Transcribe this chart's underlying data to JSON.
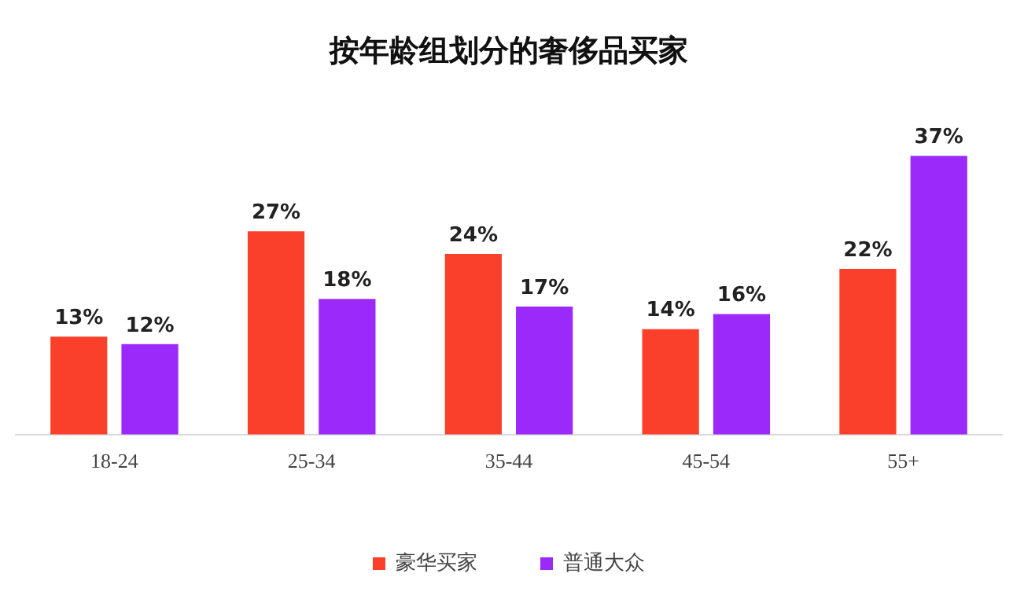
{
  "chart_data": {
    "type": "bar",
    "title": "按年龄组划分的奢侈品买家",
    "categories": [
      "18-24",
      "25-34",
      "35-44",
      "45-54",
      "55+"
    ],
    "series": [
      {
        "name": "豪华买家",
        "color": "#fa3f2a",
        "values": [
          13,
          27,
          24,
          14,
          22
        ],
        "value_labels": [
          "13%",
          "27%",
          "24%",
          "14%",
          "22%"
        ]
      },
      {
        "name": "普通大众",
        "color": "#9b2afa",
        "values": [
          12,
          18,
          17,
          16,
          37
        ],
        "value_labels": [
          "12%",
          "18%",
          "17%",
          "16%",
          "37%"
        ]
      }
    ],
    "legend": "bottom",
    "grid": false,
    "tick_labels": "x"
  }
}
